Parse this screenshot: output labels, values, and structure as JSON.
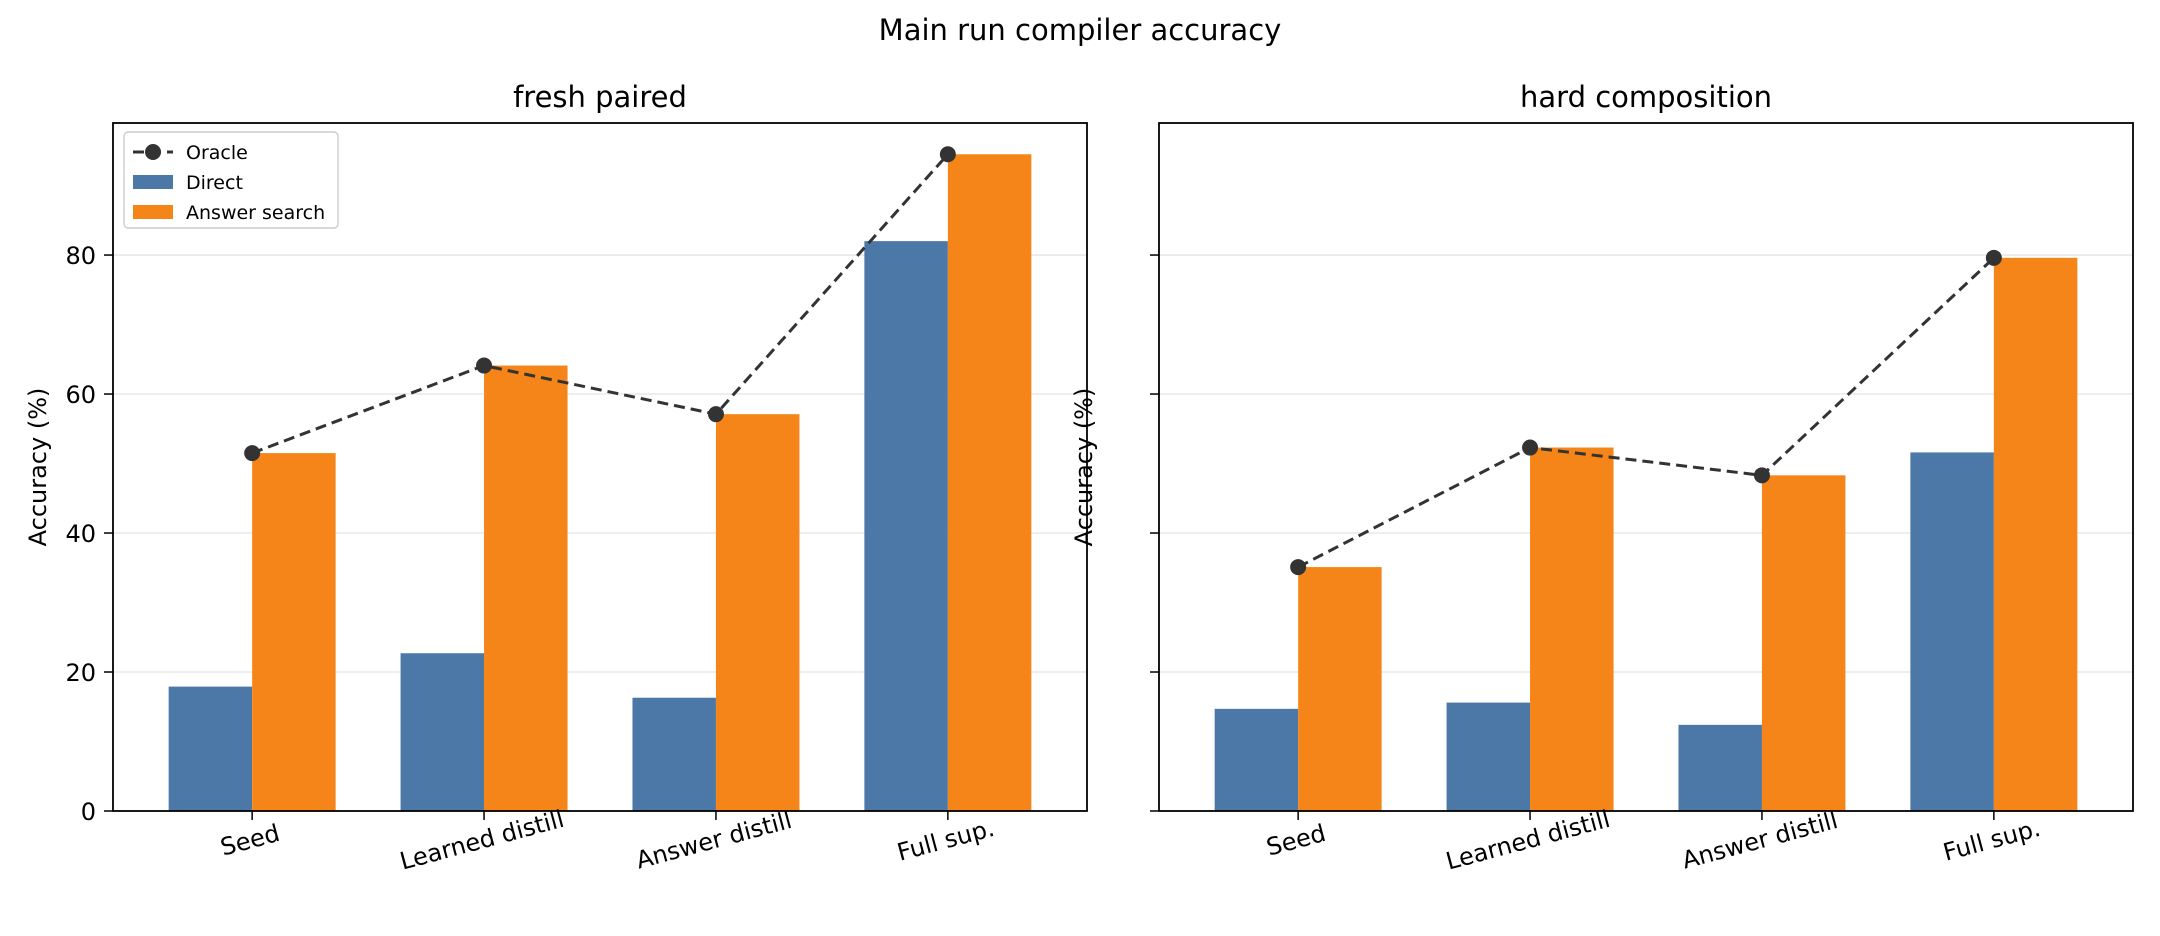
{
  "figure_title": "Main run compiler accuracy",
  "chart_data": [
    {
      "type": "bar",
      "title": "fresh paired",
      "xlabel": "",
      "ylabel": "Accuracy (%)",
      "categories": [
        "Seed",
        "Learned distill",
        "Answer distill",
        "Full sup."
      ],
      "ylim": [
        0,
        99
      ],
      "yticks": [
        0,
        20,
        40,
        60,
        80
      ],
      "grid": "y",
      "legend_position": "upper-left",
      "series": [
        {
          "name": "Direct",
          "kind": "bar",
          "color": "#4c78a8",
          "values": [
            17.9,
            22.7,
            16.3,
            82.0
          ]
        },
        {
          "name": "Answer search",
          "kind": "bar",
          "color": "#f58518",
          "values": [
            51.5,
            64.1,
            57.1,
            94.5
          ]
        },
        {
          "name": "Oracle",
          "kind": "line",
          "style": "dashed",
          "marker": "circle",
          "color": "#333333",
          "values": [
            51.5,
            64.1,
            57.1,
            94.5
          ]
        }
      ]
    },
    {
      "type": "bar",
      "title": "hard composition",
      "xlabel": "",
      "ylabel": "Accuracy (%)",
      "categories": [
        "Seed",
        "Learned distill",
        "Answer distill",
        "Full sup."
      ],
      "ylim": [
        0,
        99
      ],
      "yticks": [
        0,
        20,
        40,
        60,
        80
      ],
      "show_ytick_labels": false,
      "grid": "y",
      "series": [
        {
          "name": "Direct",
          "kind": "bar",
          "color": "#4c78a8",
          "values": [
            14.7,
            15.6,
            12.4,
            51.6
          ]
        },
        {
          "name": "Answer search",
          "kind": "bar",
          "color": "#f58518",
          "values": [
            35.1,
            52.3,
            48.3,
            79.6
          ]
        },
        {
          "name": "Oracle",
          "kind": "line",
          "style": "dashed",
          "marker": "circle",
          "color": "#333333",
          "values": [
            35.1,
            52.3,
            48.3,
            79.6
          ]
        }
      ]
    }
  ]
}
